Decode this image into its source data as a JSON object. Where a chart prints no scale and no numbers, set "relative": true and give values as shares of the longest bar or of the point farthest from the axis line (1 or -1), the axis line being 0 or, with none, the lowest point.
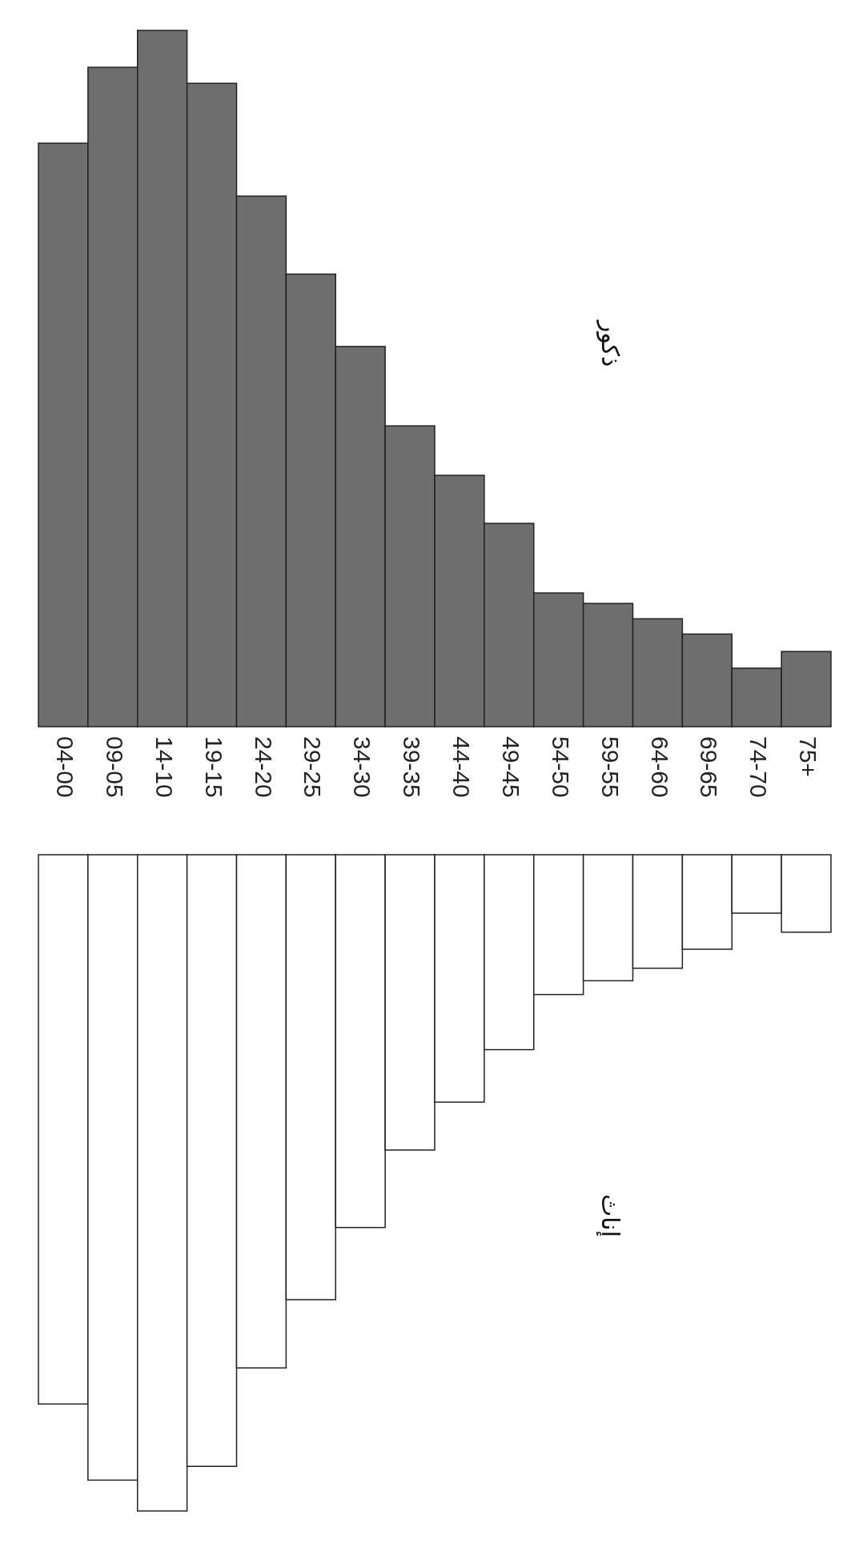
{
  "chart_data": [
    {
      "type": "bar",
      "relative": true,
      "categories": [
        "04-00",
        "09-05",
        "14-10",
        "19-15",
        "24-20",
        "29-25",
        "34-30",
        "39-35",
        "44-40",
        "49-45",
        "54-50",
        "59-55",
        "64-60",
        "69-65",
        "74-70",
        "75+"
      ],
      "series": [
        {
          "name": "ذكور",
          "color": "#6e6e6e",
          "values": [
            0.838,
            0.947,
            1,
            0.924,
            0.762,
            0.65,
            0.546,
            0.432,
            0.361,
            0.292,
            0.192,
            0.177,
            0.155,
            0.133,
            0.084,
            0.108
          ]
        }
      ]
    },
    {
      "type": "bar",
      "relative": true,
      "categories": [
        null,
        null,
        null,
        null,
        null,
        null,
        null,
        null,
        null,
        null,
        null,
        null,
        null,
        null,
        null,
        null
      ],
      "series": [
        {
          "name": "إناث",
          "color": "#ffffff",
          "values": [
            -0.837,
            -0.953,
            -1,
            -0.932,
            -0.782,
            -0.678,
            -0.568,
            -0.45,
            -0.377,
            -0.297,
            -0.213,
            -0.192,
            -0.173,
            -0.144,
            -0.089,
            -0.118
          ]
        }
      ]
    }
  ]
}
